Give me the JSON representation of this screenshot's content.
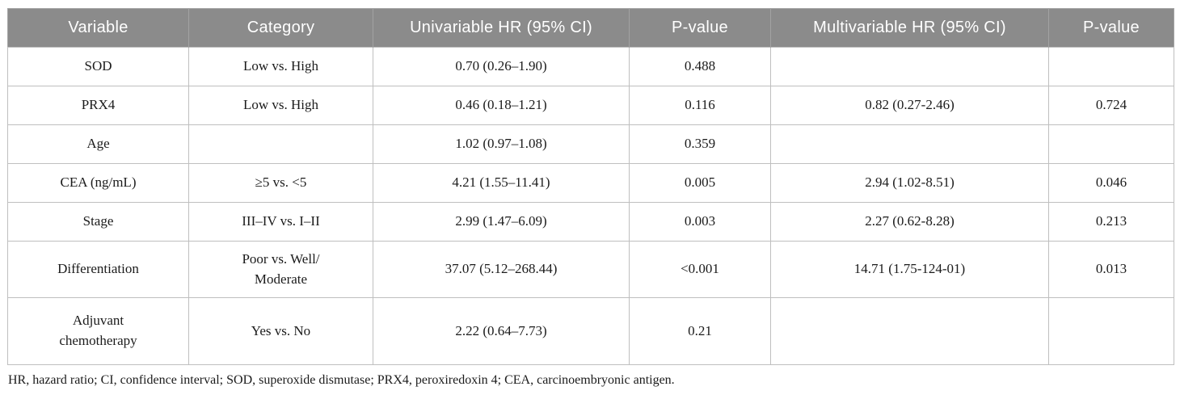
{
  "colors": {
    "header_bg": "#8b8b8b",
    "header_text": "#ffffff",
    "body_text": "#1b1b1b",
    "grid_line": "#bfbfbf",
    "outer_border": "#a6a6a6"
  },
  "table": {
    "columns": [
      "Variable",
      "Category",
      "Univariable HR (95% CI)",
      "P-value",
      "Multivariable HR (95% CI)",
      "P-value"
    ],
    "rows": [
      {
        "variable": "SOD",
        "category": "Low vs. High",
        "uni_hr": "0.70 (0.26–1.90)",
        "uni_p": "0.488",
        "multi_hr": "",
        "multi_p": ""
      },
      {
        "variable": "PRX4",
        "category": "Low vs. High",
        "uni_hr": "0.46 (0.18–1.21)",
        "uni_p": "0.116",
        "multi_hr": "0.82 (0.27-2.46)",
        "multi_p": "0.724"
      },
      {
        "variable": "Age",
        "category": "",
        "uni_hr": "1.02 (0.97–1.08)",
        "uni_p": "0.359",
        "multi_hr": "",
        "multi_p": ""
      },
      {
        "variable": "CEA (ng/mL)",
        "category": "≥5 vs. <5",
        "uni_hr": "4.21 (1.55–11.41)",
        "uni_p": "0.005",
        "multi_hr": "2.94 (1.02-8.51)",
        "multi_p": "0.046"
      },
      {
        "variable": "Stage",
        "category": "III–IV vs. I–II",
        "uni_hr": "2.99 (1.47–6.09)",
        "uni_p": "0.003",
        "multi_hr": "2.27 (0.62-8.28)",
        "multi_p": "0.213"
      },
      {
        "variable": "Differentiation",
        "category": "Poor vs. Well/\nModerate",
        "uni_hr": "37.07 (5.12–268.44)",
        "uni_p": "<0.001",
        "multi_hr": "14.71 (1.75-124-01)",
        "multi_p": "0.013"
      },
      {
        "variable": "Adjuvant\nchemotherapy",
        "category": "Yes vs. No",
        "uni_hr": "2.22 (0.64–7.73)",
        "uni_p": "0.21",
        "multi_hr": "",
        "multi_p": ""
      }
    ],
    "footnote": "HR, hazard ratio; CI, confidence interval; SOD, superoxide dismutase; PRX4, peroxiredoxin 4; CEA, carcinoembryonic antigen."
  }
}
